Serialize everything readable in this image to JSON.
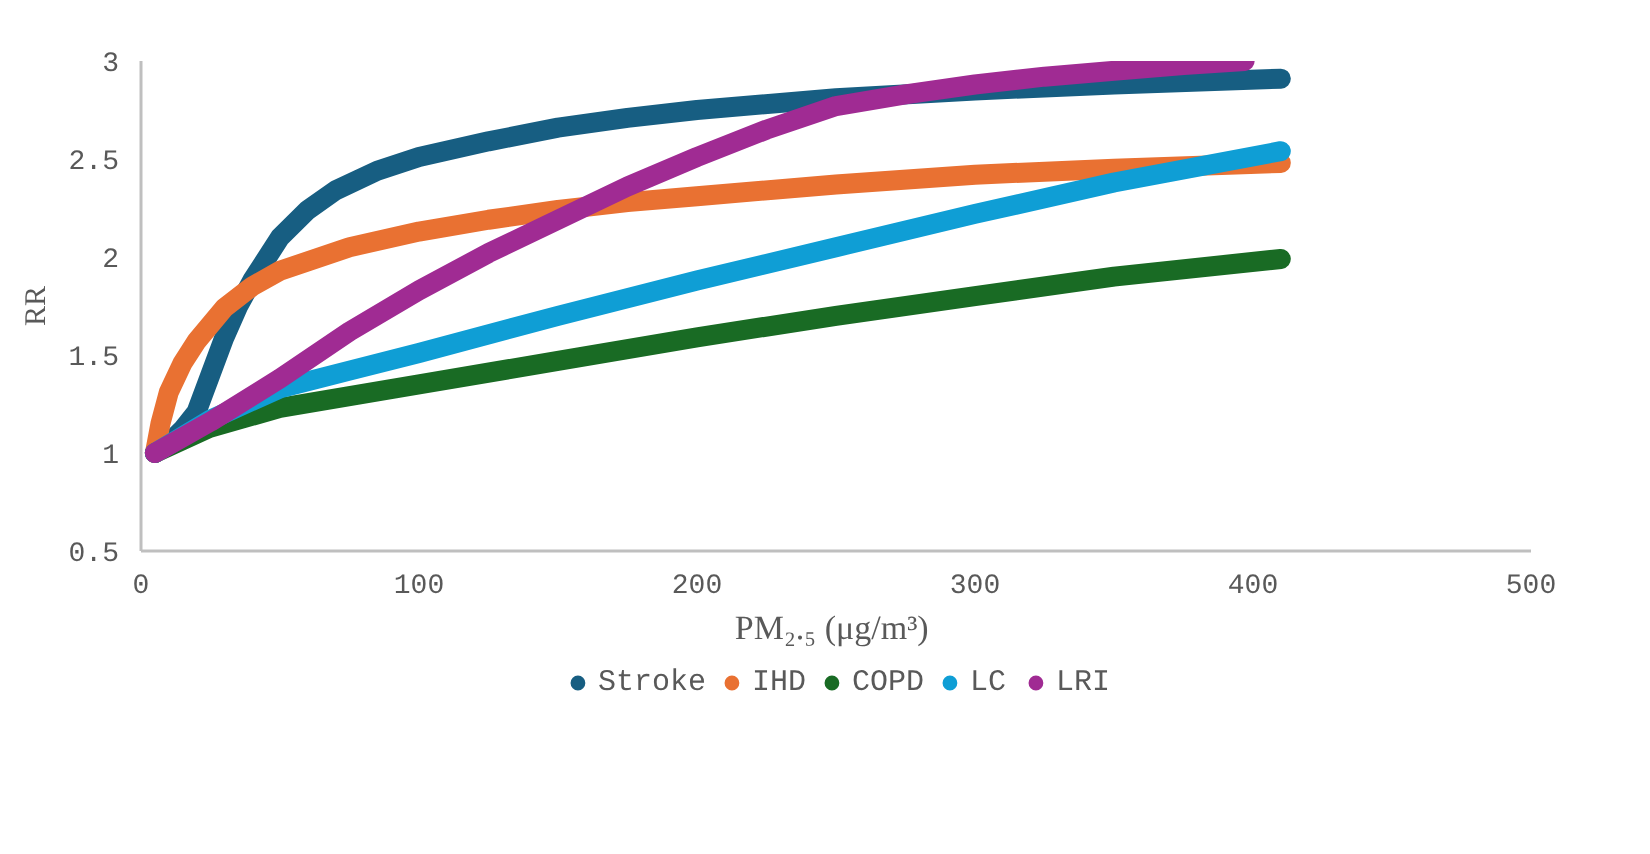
{
  "chart_data": {
    "type": "line",
    "xlabel": "PM₂.₅  (μg/m³)",
    "ylabel": "RR",
    "xlim": [
      0,
      500
    ],
    "xticks": [
      0,
      100,
      200,
      300,
      400,
      500
    ],
    "ylim": [
      0.5,
      3
    ],
    "yticks": [
      0.5,
      1,
      1.5,
      2,
      2.5,
      3
    ],
    "grid": false,
    "legend": "bottom",
    "line_style": "solid",
    "series": [
      {
        "name": "Stroke",
        "color": "#175e82",
        "x": [
          5,
          10,
          15,
          20,
          25,
          30,
          35,
          40,
          50,
          60,
          70,
          85,
          100,
          125,
          150,
          175,
          200,
          250,
          300,
          350,
          410
        ],
        "values": [
          1.0,
          1.05,
          1.12,
          1.21,
          1.4,
          1.59,
          1.75,
          1.88,
          2.1,
          2.24,
          2.34,
          2.44,
          2.51,
          2.59,
          2.66,
          2.71,
          2.75,
          2.81,
          2.85,
          2.88,
          2.91
        ]
      },
      {
        "name": "IHD",
        "color": "#e97132",
        "x": [
          5,
          7,
          10,
          15,
          20,
          30,
          40,
          50,
          75,
          100,
          125,
          150,
          175,
          200,
          250,
          300,
          350,
          410
        ],
        "values": [
          1.0,
          1.15,
          1.31,
          1.46,
          1.57,
          1.74,
          1.85,
          1.93,
          2.05,
          2.13,
          2.19,
          2.24,
          2.28,
          2.31,
          2.37,
          2.42,
          2.45,
          2.48
        ]
      },
      {
        "name": "COPD",
        "color": "#196b24",
        "x": [
          5,
          25,
          50,
          75,
          100,
          150,
          200,
          250,
          300,
          350,
          410
        ],
        "values": [
          1.0,
          1.13,
          1.23,
          1.29,
          1.35,
          1.47,
          1.59,
          1.7,
          1.8,
          1.9,
          1.99
        ]
      },
      {
        "name": "LC",
        "color": "#0f9ed5",
        "x": [
          5,
          25,
          50,
          75,
          100,
          150,
          200,
          250,
          300,
          350,
          410
        ],
        "values": [
          1.0,
          1.17,
          1.33,
          1.42,
          1.51,
          1.7,
          1.88,
          2.05,
          2.22,
          2.38,
          2.54
        ]
      },
      {
        "name": "LRI",
        "color": "#a02b93",
        "x": [
          5,
          25,
          50,
          75,
          100,
          125,
          150,
          175,
          200,
          225,
          250,
          275,
          300,
          325,
          350,
          375,
          397
        ],
        "values": [
          1.0,
          1.16,
          1.38,
          1.62,
          1.83,
          2.02,
          2.19,
          2.36,
          2.51,
          2.65,
          2.77,
          2.83,
          2.88,
          2.92,
          2.95,
          2.98,
          3.0
        ]
      }
    ]
  }
}
